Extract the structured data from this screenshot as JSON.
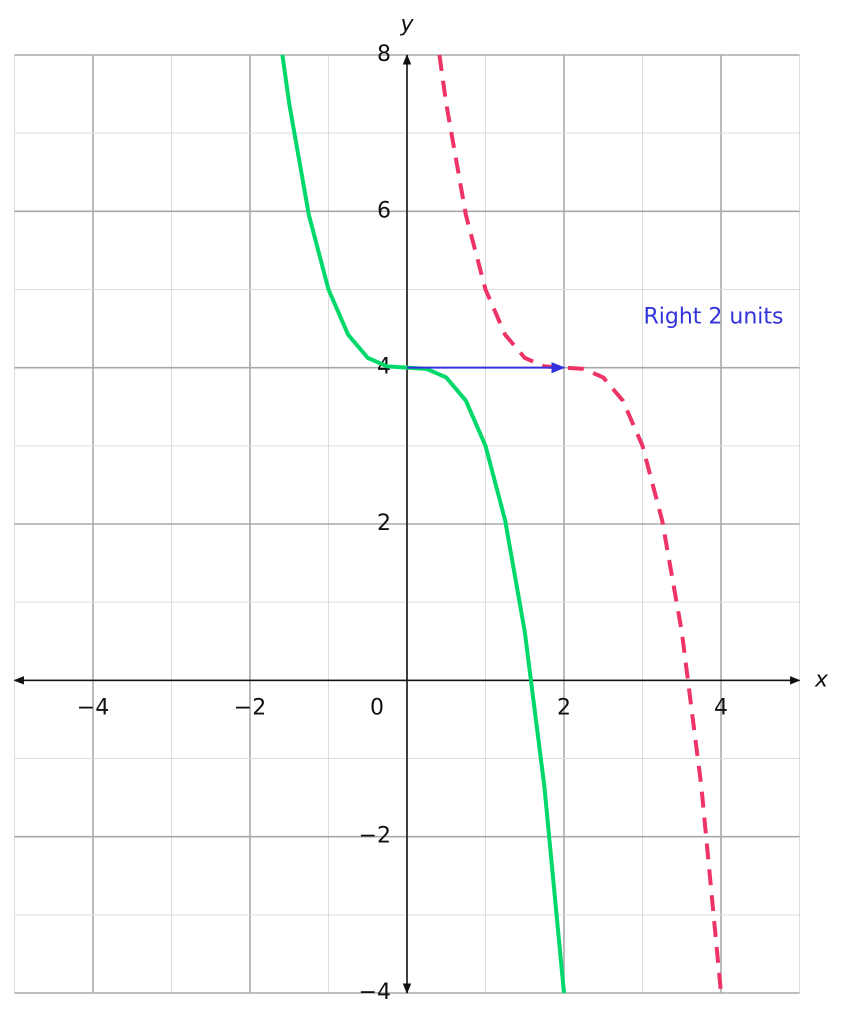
{
  "chart_data": {
    "type": "line",
    "x_label": "x",
    "y_label": "y",
    "xlim": [
      -5,
      5
    ],
    "ylim": [
      -4,
      8
    ],
    "xticks": [
      {
        "value": -4,
        "label": "−4"
      },
      {
        "value": -2,
        "label": "−2"
      },
      0,
      2,
      4
    ],
    "yticks": [
      {
        "value": -4,
        "label": "−4"
      },
      {
        "value": -2,
        "label": "−2"
      },
      2,
      4,
      6,
      8
    ],
    "grid": true,
    "series": [
      {
        "color": "#00d96a",
        "dash": false,
        "x": [
          -1.587,
          -1.5,
          -1.25,
          -1,
          -0.75,
          -0.5,
          -0.25,
          0,
          0.25,
          0.5,
          0.75,
          1,
          1.25,
          1.5,
          1.75,
          2
        ],
        "values": [
          8,
          7.375,
          5.953,
          5,
          4.422,
          4.125,
          4.016,
          4,
          3.984,
          3.875,
          3.578,
          3,
          2.047,
          0.625,
          -1.359,
          -4
        ]
      },
      {
        "color": "#ee3366",
        "dash": true,
        "x": [
          0.413,
          0.5,
          0.75,
          1,
          1.25,
          1.5,
          1.75,
          2,
          2.25,
          2.5,
          2.75,
          3,
          3.25,
          3.5,
          3.75,
          4
        ],
        "values": [
          8,
          7.375,
          5.953,
          5,
          4.422,
          4.125,
          4.016,
          4,
          3.984,
          3.875,
          3.578,
          3,
          2.047,
          0.625,
          -1.359,
          -4
        ]
      }
    ],
    "annotations": [
      {
        "text": "Right 2 units",
        "color": "#3333dd",
        "arrow_x": [
          0,
          2
        ],
        "arrow_y": 4
      }
    ]
  }
}
